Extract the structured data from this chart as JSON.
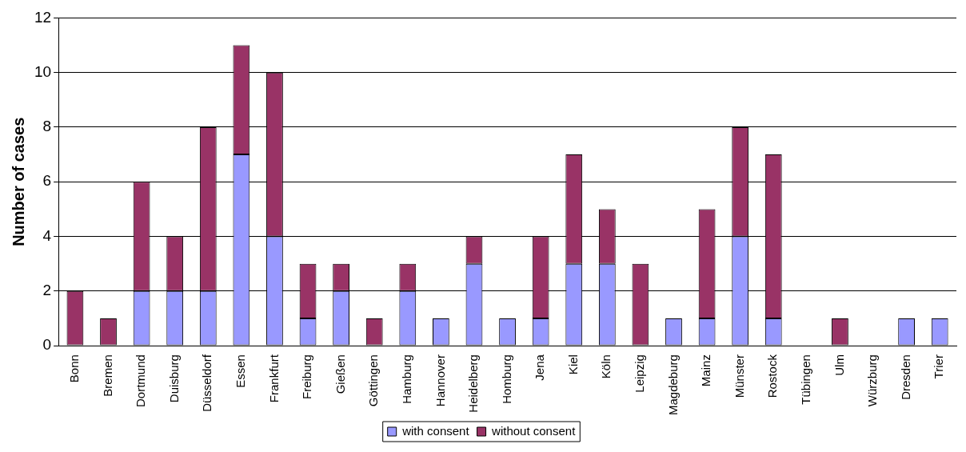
{
  "chart_data": {
    "type": "bar",
    "stacked": true,
    "ylabel": "Number of cases",
    "categories": [
      "Bonn",
      "Bremen",
      "Dortmund",
      "Duisburg",
      "Düsseldorf",
      "Essen",
      "Frankfurt",
      "Freiburg",
      "Gießen",
      "Göttingen",
      "Hamburg",
      "Hannover",
      "Heidelberg",
      "Homburg",
      "Jena",
      "Kiel",
      "Köln",
      "Leipzig",
      "Magdeburg",
      "Mainz",
      "Münster",
      "Rostock",
      "Tübingen",
      "Ulm",
      "Würzburg",
      "Dresden",
      "Trier"
    ],
    "series": [
      {
        "name": "with consent",
        "color": "#9999ff",
        "values": [
          0,
          0,
          2,
          2,
          2,
          7,
          4,
          1,
          2,
          0,
          2,
          1,
          3,
          1,
          1,
          3,
          3,
          0,
          1,
          1,
          4,
          1,
          0,
          0,
          0,
          1,
          1
        ]
      },
      {
        "name": "without consent",
        "color": "#993366",
        "values": [
          2,
          1,
          4,
          2,
          6,
          4,
          6,
          2,
          1,
          1,
          1,
          0,
          1,
          0,
          3,
          4,
          2,
          3,
          0,
          4,
          4,
          6,
          0,
          1,
          0,
          0,
          0
        ]
      }
    ],
    "ylim": [
      0,
      12
    ],
    "yticks": [
      0,
      2,
      4,
      6,
      8,
      10,
      12
    ],
    "grid": "y",
    "legend": "bottom"
  }
}
